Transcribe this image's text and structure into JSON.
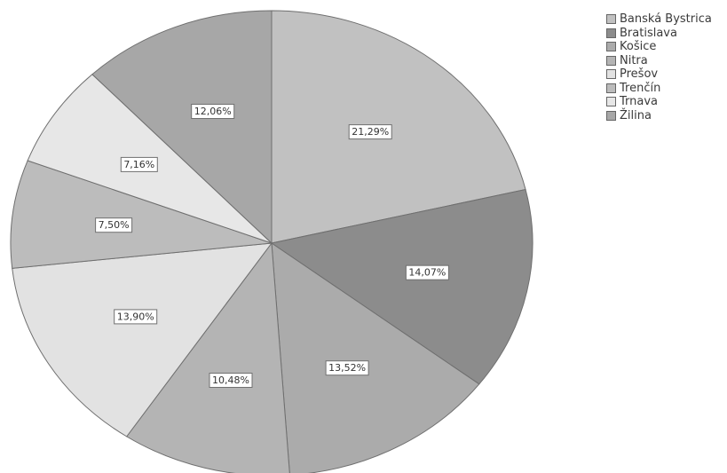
{
  "chart_data": {
    "type": "pie",
    "categories": [
      "Banská Bystrica",
      "Bratislava",
      "Košice",
      "Nitra",
      "Prešov",
      "Trenčín",
      "Trnava",
      "Žilina"
    ],
    "values": [
      21.29,
      14.07,
      13.52,
      10.48,
      13.9,
      7.5,
      7.16,
      12.06
    ],
    "labels": [
      "21,29%",
      "14,07%",
      "13,52%",
      "10,48%",
      "13,90%",
      "7,50%",
      "7,16%",
      "12,06%"
    ],
    "colors": [
      "#c1c1c1",
      "#8c8c8c",
      "#ababab",
      "#b4b4b4",
      "#e2e2e2",
      "#bcbcbc",
      "#e7e7e7",
      "#a7a7a7"
    ],
    "legend_position": "top-right",
    "start_angle_deg": 0,
    "direction": "clockwise"
  }
}
